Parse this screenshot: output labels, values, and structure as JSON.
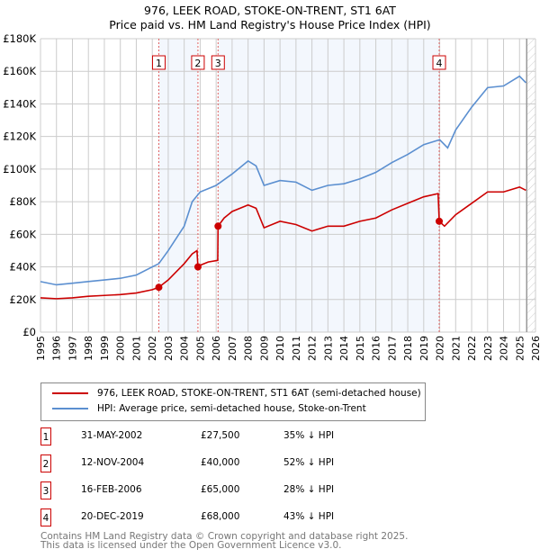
{
  "title": "976, LEEK ROAD, STOKE-ON-TRENT, ST1 6AT",
  "subtitle": "Price paid vs. HM Land Registry's House Price Index (HPI)",
  "chart_data": {
    "type": "line",
    "title": "976, LEEK ROAD, STOKE-ON-TRENT, ST1 6AT — Price paid vs. HM Land Registry's House Price Index (HPI)",
    "xlim": [
      1995,
      2026
    ],
    "ylim": [
      0,
      180000
    ],
    "x_ticks": [
      "1995",
      "1996",
      "1997",
      "1998",
      "1999",
      "2000",
      "2001",
      "2002",
      "2003",
      "2004",
      "2005",
      "2006",
      "2007",
      "2008",
      "2009",
      "2010",
      "2011",
      "2012",
      "2013",
      "2014",
      "2015",
      "2016",
      "2017",
      "2018",
      "2019",
      "2020",
      "2021",
      "2022",
      "2023",
      "2024",
      "2025",
      "2026"
    ],
    "y_ticks": [
      {
        "v": 0,
        "l": "£0"
      },
      {
        "v": 20000,
        "l": "£20K"
      },
      {
        "v": 40000,
        "l": "£40K"
      },
      {
        "v": 60000,
        "l": "£60K"
      },
      {
        "v": 80000,
        "l": "£80K"
      },
      {
        "v": 100000,
        "l": "£100K"
      },
      {
        "v": 120000,
        "l": "£120K"
      },
      {
        "v": 140000,
        "l": "£140K"
      },
      {
        "v": 160000,
        "l": "£160K"
      },
      {
        "v": 180000,
        "l": "£180K"
      }
    ],
    "grid": true,
    "series": [
      {
        "name": "976, LEEK ROAD, STOKE-ON-TRENT, ST1 6AT (semi-detached house)",
        "color": "#cc0000",
        "x": [
          1995,
          1996,
          1997,
          1998,
          1999,
          2000,
          2001,
          2002,
          2002.41,
          2003,
          2004,
          2004.5,
          2004.8,
          2004.86,
          2005,
          2005.5,
          2006.1,
          2006.12,
          2006.5,
          2007,
          2008,
          2008.5,
          2009,
          2010,
          2011,
          2012,
          2013,
          2014,
          2015,
          2016,
          2017,
          2018,
          2019,
          2019.9,
          2019.97,
          2020.3,
          2021,
          2022,
          2023,
          2024,
          2025,
          2025.4
        ],
        "y": [
          21000,
          20500,
          21000,
          22000,
          22500,
          23000,
          24000,
          26000,
          27500,
          32000,
          42000,
          48000,
          50000,
          40000,
          41000,
          43000,
          44000,
          65000,
          70000,
          74000,
          78000,
          76000,
          64000,
          68000,
          66000,
          62000,
          65000,
          65000,
          68000,
          70000,
          75000,
          79000,
          83000,
          85000,
          68000,
          65000,
          72000,
          79000,
          86000,
          86000,
          89000,
          87000
        ]
      },
      {
        "name": "HPI: Average price, semi-detached house, Stoke-on-Trent",
        "color": "#5b8fd0",
        "x": [
          1995,
          1996,
          1997,
          1998,
          1999,
          2000,
          2001,
          2002,
          2002.41,
          2003,
          2004,
          2004.5,
          2005,
          2006,
          2007,
          2008,
          2008.5,
          2009,
          2010,
          2011,
          2012,
          2013,
          2014,
          2015,
          2016,
          2017,
          2018,
          2019,
          2020,
          2020.5,
          2021,
          2022,
          2023,
          2024,
          2025,
          2025.4
        ],
        "y": [
          31000,
          29000,
          30000,
          31000,
          32000,
          33000,
          35000,
          40000,
          42000,
          50000,
          65000,
          80000,
          86000,
          90000,
          97000,
          105000,
          102000,
          90000,
          93000,
          92000,
          87000,
          90000,
          91000,
          94000,
          98000,
          104000,
          109000,
          115000,
          118000,
          113000,
          124000,
          138000,
          150000,
          151000,
          157000,
          153000
        ]
      }
    ],
    "sales": [
      {
        "n": "1",
        "x": 2002.41,
        "price": 27500,
        "date": "31-MAY-2002",
        "price_label": "£27,500",
        "hpi": "35% ↓ HPI"
      },
      {
        "n": "2",
        "x": 2004.86,
        "price": 40000,
        "date": "12-NOV-2004",
        "price_label": "£40,000",
        "hpi": "52% ↓ HPI"
      },
      {
        "n": "3",
        "x": 2006.12,
        "price": 65000,
        "date": "16-FEB-2006",
        "price_label": "£65,000",
        "hpi": "28% ↓ HPI"
      },
      {
        "n": "4",
        "x": 2019.97,
        "price": 68000,
        "date": "20-DEC-2019",
        "price_label": "£68,000",
        "hpi": "43% ↓ HPI"
      }
    ],
    "legend_placement": "below"
  },
  "footer": [
    "Contains HM Land Registry data © Crown copyright and database right 2025.",
    "This data is licensed under the Open Government Licence v3.0."
  ]
}
